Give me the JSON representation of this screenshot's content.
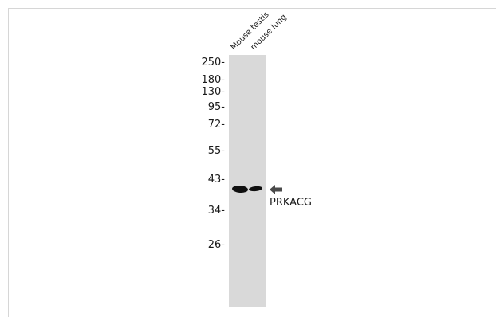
{
  "lanes": [
    {
      "label": "Mouse testis"
    },
    {
      "label": "mouse lung"
    }
  ],
  "markers": [
    {
      "label": "250-"
    },
    {
      "label": "180-"
    },
    {
      "label": "130-"
    },
    {
      "label": "95-"
    },
    {
      "label": "72-"
    },
    {
      "label": "55-"
    },
    {
      "label": "43-"
    },
    {
      "label": "34-"
    },
    {
      "label": "26-"
    }
  ],
  "target": {
    "label": "PRKACG",
    "arrow_icon": "left-arrow-icon"
  },
  "colors": {
    "membrane": "#d9d9d9",
    "band": "#101010",
    "arrow": "#4a4a4a"
  }
}
